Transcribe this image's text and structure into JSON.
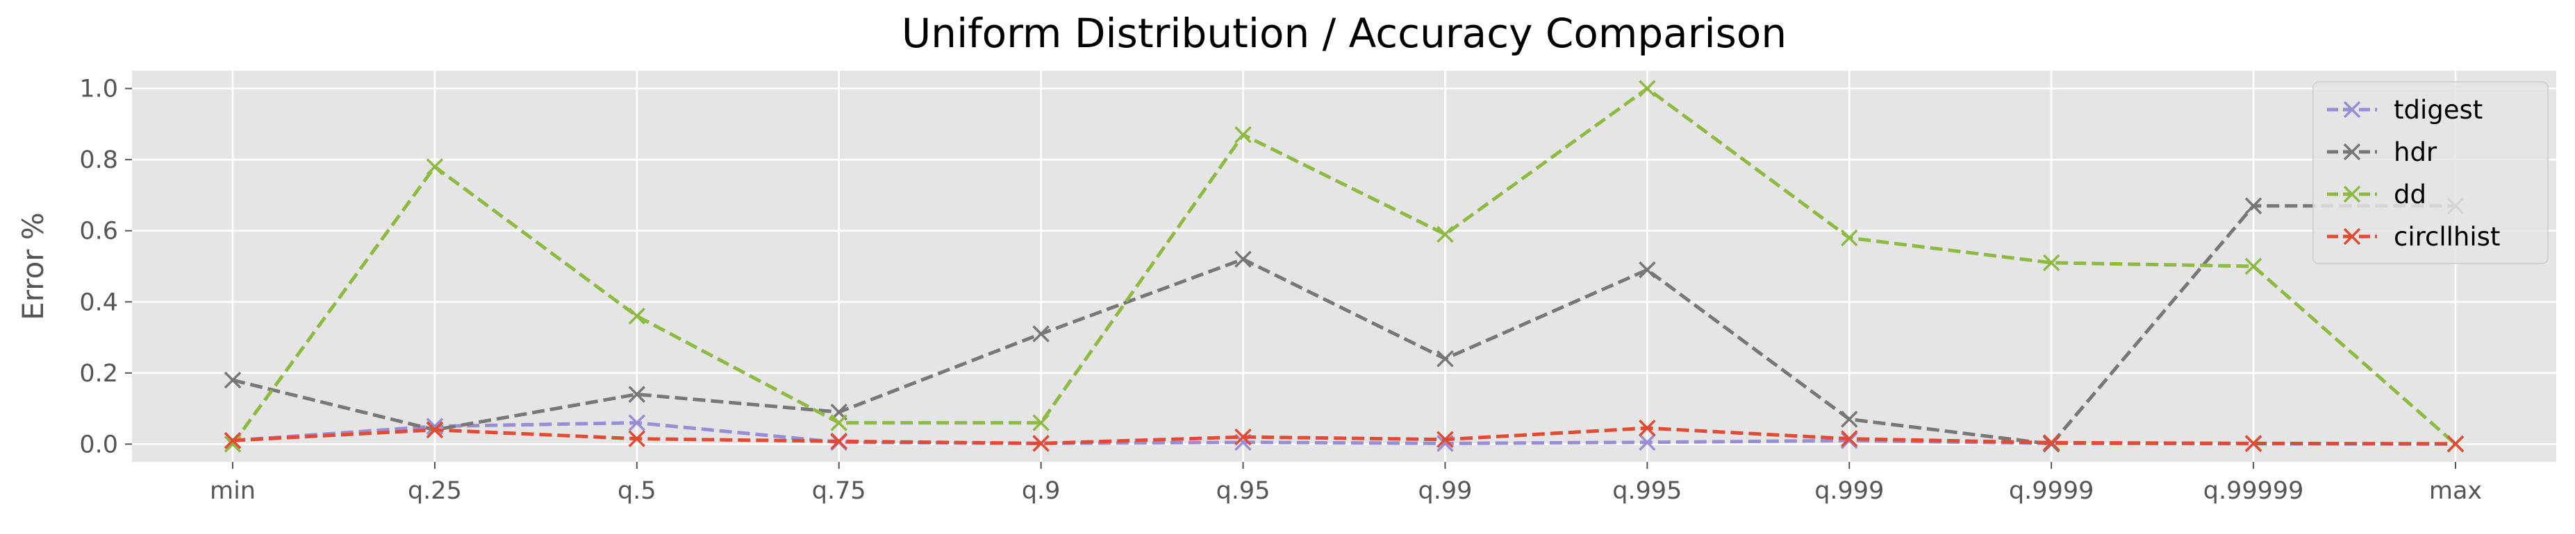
{
  "chart_data": {
    "type": "line",
    "title": "Uniform Distribution / Accuracy Comparison",
    "xlabel": "",
    "ylabel": "Error %",
    "categories": [
      "min",
      "q.25",
      "q.5",
      "q.75",
      "q.9",
      "q.95",
      "q.99",
      "q.995",
      "q.999",
      "q.9999",
      "q.99999",
      "max"
    ],
    "ylim": [
      -0.05,
      1.05
    ],
    "yticks": [
      0.0,
      0.2,
      0.4,
      0.6,
      0.8,
      1.0
    ],
    "ytick_labels": [
      "0.0",
      "0.2",
      "0.4",
      "0.6",
      "0.8",
      "1.0"
    ],
    "grid": true,
    "legend_position": "top-right",
    "style": {
      "background": "#e5e5e5",
      "grid_color": "#ffffff",
      "text_color": "#555555",
      "title_color": "#000000"
    },
    "series": [
      {
        "name": "tdigest",
        "color": "#988ed5",
        "marker": "x",
        "linestyle": "dashed",
        "values": [
          0.01,
          0.05,
          0.06,
          0.005,
          0.002,
          0.005,
          0.002,
          0.005,
          0.01,
          0.002,
          0.001,
          0.0
        ]
      },
      {
        "name": "hdr",
        "color": "#777777",
        "marker": "x",
        "linestyle": "dashed",
        "values": [
          0.18,
          0.04,
          0.14,
          0.09,
          0.31,
          0.52,
          0.24,
          0.49,
          0.07,
          0.0,
          0.67,
          0.67
        ]
      },
      {
        "name": "dd",
        "color": "#8eba42",
        "marker": "x",
        "linestyle": "dashed",
        "values": [
          0.0,
          0.78,
          0.36,
          0.06,
          0.06,
          0.87,
          0.59,
          1.0,
          0.58,
          0.51,
          0.5,
          0.0
        ]
      },
      {
        "name": "circllhist",
        "color": "#e24a33",
        "marker": "x",
        "linestyle": "dashed",
        "values": [
          0.01,
          0.04,
          0.015,
          0.008,
          0.002,
          0.02,
          0.013,
          0.045,
          0.015,
          0.004,
          0.002,
          0.001
        ]
      }
    ]
  }
}
